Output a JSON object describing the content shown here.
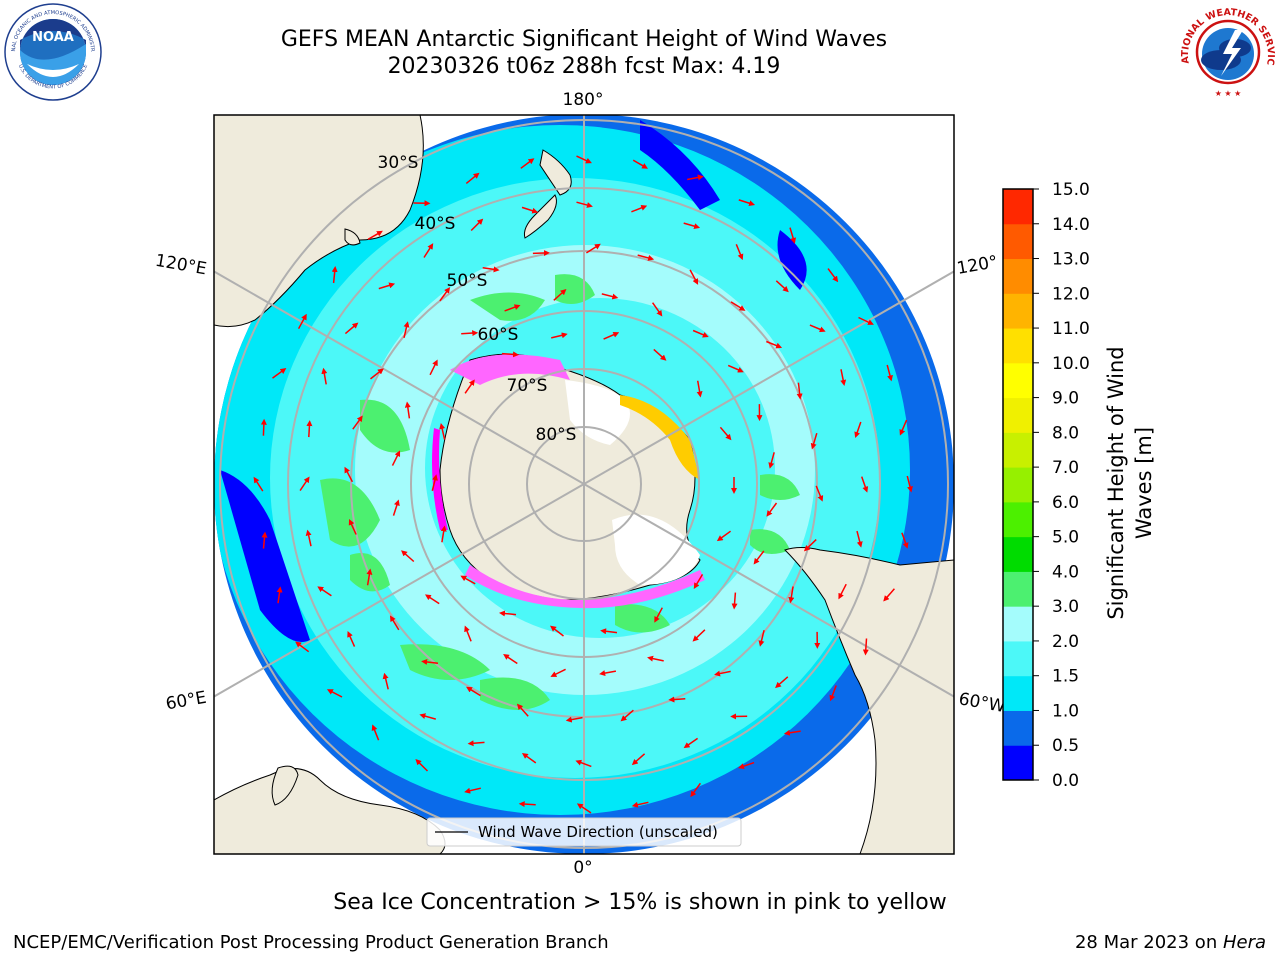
{
  "header": {
    "title_line1": "GEFS MEAN Antarctic Significant Height of Wind Waves",
    "title_line2": "20230326 t06z 288h fcst   Max: 4.19"
  },
  "logos": {
    "noaa": "NOAA",
    "noaa_ring": "NATIONAL OCEANIC AND ATMOSPHERIC ADMINISTRATION",
    "noaa_ring_bottom": "U.S. DEPARTMENT OF COMMERCE",
    "nws_ring": "NATIONAL WEATHER SERVICE"
  },
  "map": {
    "projection": "south-polar-stereographic",
    "longitude_labels": [
      "180°",
      "120°E",
      "120°",
      "60°E",
      "60°W",
      "0°"
    ],
    "latitude_labels": [
      "30°S",
      "40°S",
      "50°S",
      "60°S",
      "70°S",
      "80°S"
    ],
    "legend_label": "Wind Wave Direction (unscaled)",
    "sea_ice_colors": [
      "#ff00ff",
      "#ff66ff",
      "#ffcc00",
      "#ffff00",
      "#ffffff"
    ],
    "land_color": "#efebdc",
    "arrow_color": "#ff0000",
    "sea_ice_note": "Sea Ice Concentration > 15% is shown in pink to yellow"
  },
  "colorbar": {
    "label": "Significant Height of Wind Waves [m]",
    "ticks": [
      "0.0",
      "0.5",
      "1.0",
      "1.5",
      "2.0",
      "3.0",
      "4.0",
      "5.0",
      "6.0",
      "7.0",
      "8.0",
      "9.0",
      "10.0",
      "11.0",
      "12.0",
      "13.0",
      "14.0",
      "15.0"
    ],
    "colors": [
      "#0000ff",
      "#0a6aea",
      "#00e8f8",
      "#4cf8f8",
      "#a4fcfc",
      "#4cf070",
      "#00dc00",
      "#4cf000",
      "#96f000",
      "#c8f000",
      "#f0f000",
      "#ffff00",
      "#ffe000",
      "#ffb400",
      "#ff8c00",
      "#ff5a00",
      "#ff2800"
    ]
  },
  "footer": {
    "credit_left": "NCEP/EMC/Verification Post Processing Product Generation Branch",
    "date": "28 Mar 2023 on ",
    "host": "Hera"
  }
}
